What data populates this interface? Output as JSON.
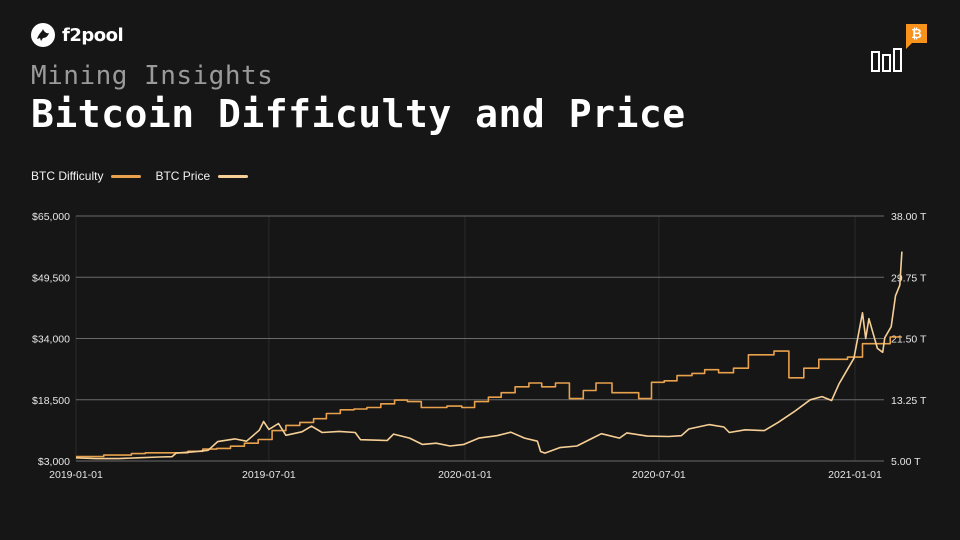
{
  "brand": {
    "name": "f2pool"
  },
  "header": {
    "kicker": "Mining Insights",
    "title": "Bitcoin Difficulty and Price"
  },
  "colors": {
    "background": "#161616",
    "difficulty": "#e8a14c",
    "price": "#f6cf96",
    "grid": "#6a6a6a",
    "accent": "#f7931a"
  },
  "icons": {
    "brand": "bird-logo-icon",
    "corner": "bitcoin-bar-chart-icon"
  },
  "chart_data": {
    "type": "line",
    "x_type": "date",
    "x_ticks": [
      "2019-01-01",
      "2019-07-01",
      "2020-01-01",
      "2020-07-01",
      "2021-01-01"
    ],
    "y_left": {
      "ticks": [
        "$3,000",
        "$18,500",
        "$34,000",
        "$49,500",
        "$65,000"
      ],
      "range": [
        3000,
        65000
      ]
    },
    "y_right": {
      "ticks": [
        "5.00 T",
        "13.25 T",
        "21.50 T",
        "29.75 T",
        "38.00 T"
      ],
      "range": [
        5,
        38
      ]
    },
    "x_range": [
      "2019-01-01",
      "2021-02-14"
    ],
    "grid": "horizontal",
    "legend_position": "top-left",
    "series": [
      {
        "name": "BTC Difficulty",
        "axis": "right",
        "interpolation": "step",
        "points": [
          [
            "2019-01-01",
            5.6
          ],
          [
            "2019-01-14",
            5.6
          ],
          [
            "2019-01-27",
            5.8
          ],
          [
            "2019-02-09",
            5.8
          ],
          [
            "2019-02-22",
            6.0
          ],
          [
            "2019-03-07",
            6.1
          ],
          [
            "2019-03-20",
            6.1
          ],
          [
            "2019-04-02",
            6.1
          ],
          [
            "2019-04-16",
            6.3
          ],
          [
            "2019-04-30",
            6.6
          ],
          [
            "2019-05-13",
            6.7
          ],
          [
            "2019-05-26",
            7.0
          ],
          [
            "2019-06-08",
            7.4
          ],
          [
            "2019-06-21",
            7.9
          ],
          [
            "2019-07-04",
            9.1
          ],
          [
            "2019-07-17",
            9.8
          ],
          [
            "2019-07-30",
            10.2
          ],
          [
            "2019-08-12",
            10.7
          ],
          [
            "2019-08-24",
            11.4
          ],
          [
            "2019-09-06",
            11.9
          ],
          [
            "2019-09-19",
            12.0
          ],
          [
            "2019-10-01",
            12.2
          ],
          [
            "2019-10-14",
            12.7
          ],
          [
            "2019-10-27",
            13.2
          ],
          [
            "2019-11-08",
            13.0
          ],
          [
            "2019-11-21",
            12.2
          ],
          [
            "2019-12-03",
            12.2
          ],
          [
            "2019-12-15",
            12.4
          ],
          [
            "2019-12-29",
            12.2
          ],
          [
            "2020-01-10",
            13.0
          ],
          [
            "2020-01-23",
            13.6
          ],
          [
            "2020-02-04",
            14.2
          ],
          [
            "2020-02-17",
            15.0
          ],
          [
            "2020-03-01",
            15.5
          ],
          [
            "2020-03-13",
            15.0
          ],
          [
            "2020-03-26",
            15.5
          ],
          [
            "2020-04-08",
            13.4
          ],
          [
            "2020-04-21",
            14.5
          ],
          [
            "2020-05-03",
            15.5
          ],
          [
            "2020-05-18",
            14.2
          ],
          [
            "2020-06-01",
            14.2
          ],
          [
            "2020-06-12",
            13.4
          ],
          [
            "2020-06-24",
            15.6
          ],
          [
            "2020-07-06",
            15.8
          ],
          [
            "2020-07-18",
            16.5
          ],
          [
            "2020-08-01",
            16.8
          ],
          [
            "2020-08-13",
            17.3
          ],
          [
            "2020-08-26",
            16.9
          ],
          [
            "2020-09-09",
            17.5
          ],
          [
            "2020-09-23",
            19.3
          ],
          [
            "2020-10-05",
            19.3
          ],
          [
            "2020-10-17",
            19.8
          ],
          [
            "2020-10-31",
            16.2
          ],
          [
            "2020-11-14",
            17.5
          ],
          [
            "2020-11-28",
            18.7
          ],
          [
            "2020-12-12",
            18.7
          ],
          [
            "2020-12-25",
            19.0
          ],
          [
            "2021-01-08",
            20.8
          ],
          [
            "2021-01-21",
            20.8
          ],
          [
            "2021-02-03",
            21.7
          ],
          [
            "2021-02-14",
            21.7
          ]
        ]
      },
      {
        "name": "BTC Price",
        "axis": "left",
        "interpolation": "linear",
        "points": [
          [
            "2019-01-01",
            3800
          ],
          [
            "2019-01-20",
            3600
          ],
          [
            "2019-02-10",
            3600
          ],
          [
            "2019-02-28",
            3800
          ],
          [
            "2019-03-20",
            4000
          ],
          [
            "2019-04-01",
            4100
          ],
          [
            "2019-04-05",
            5000
          ],
          [
            "2019-04-20",
            5300
          ],
          [
            "2019-05-05",
            5700
          ],
          [
            "2019-05-14",
            7900
          ],
          [
            "2019-05-30",
            8600
          ],
          [
            "2019-06-10",
            8000
          ],
          [
            "2019-06-22",
            10800
          ],
          [
            "2019-06-26",
            13000
          ],
          [
            "2019-07-01",
            11000
          ],
          [
            "2019-07-10",
            12500
          ],
          [
            "2019-07-17",
            9500
          ],
          [
            "2019-08-01",
            10400
          ],
          [
            "2019-08-10",
            11800
          ],
          [
            "2019-08-20",
            10200
          ],
          [
            "2019-09-05",
            10500
          ],
          [
            "2019-09-20",
            10200
          ],
          [
            "2019-09-25",
            8400
          ],
          [
            "2019-10-20",
            8200
          ],
          [
            "2019-10-26",
            9800
          ],
          [
            "2019-11-10",
            8800
          ],
          [
            "2019-11-22",
            7200
          ],
          [
            "2019-12-05",
            7500
          ],
          [
            "2019-12-18",
            6800
          ],
          [
            "2019-12-31",
            7200
          ],
          [
            "2020-01-14",
            8800
          ],
          [
            "2020-01-31",
            9400
          ],
          [
            "2020-02-13",
            10300
          ],
          [
            "2020-02-26",
            8800
          ],
          [
            "2020-03-09",
            8000
          ],
          [
            "2020-03-12",
            5400
          ],
          [
            "2020-03-16",
            5000
          ],
          [
            "2020-03-30",
            6400
          ],
          [
            "2020-04-15",
            6800
          ],
          [
            "2020-04-29",
            8700
          ],
          [
            "2020-05-08",
            9900
          ],
          [
            "2020-05-25",
            8800
          ],
          [
            "2020-06-01",
            10100
          ],
          [
            "2020-06-20",
            9300
          ],
          [
            "2020-07-10",
            9200
          ],
          [
            "2020-07-22",
            9400
          ],
          [
            "2020-07-29",
            11100
          ],
          [
            "2020-08-17",
            12200
          ],
          [
            "2020-08-31",
            11600
          ],
          [
            "2020-09-05",
            10200
          ],
          [
            "2020-09-20",
            10900
          ],
          [
            "2020-10-08",
            10700
          ],
          [
            "2020-10-21",
            12800
          ],
          [
            "2020-11-05",
            15500
          ],
          [
            "2020-11-20",
            18500
          ],
          [
            "2020-12-01",
            19300
          ],
          [
            "2020-12-10",
            18300
          ],
          [
            "2020-12-17",
            22500
          ],
          [
            "2020-12-31",
            29000
          ],
          [
            "2021-01-08",
            40500
          ],
          [
            "2021-01-11",
            34000
          ],
          [
            "2021-01-14",
            39000
          ],
          [
            "2021-01-22",
            31500
          ],
          [
            "2021-01-27",
            30500
          ],
          [
            "2021-01-29",
            34200
          ],
          [
            "2021-02-04",
            37000
          ],
          [
            "2021-02-08",
            44800
          ],
          [
            "2021-02-12",
            47500
          ],
          [
            "2021-02-14",
            56000
          ]
        ]
      }
    ]
  }
}
